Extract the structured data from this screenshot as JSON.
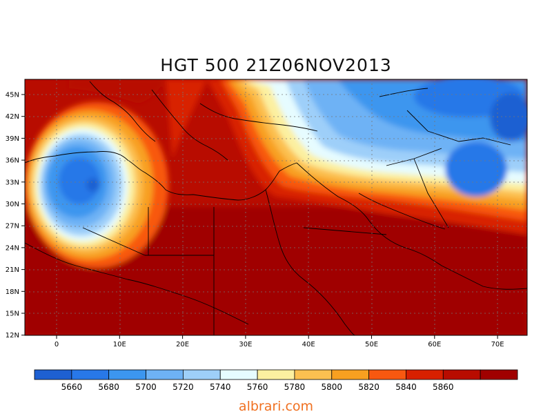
{
  "title": "HGT 500 21Z06NOV2013",
  "x_ticks": [
    "0",
    "10E",
    "20E",
    "30E",
    "40E",
    "50E",
    "60E",
    "70E"
  ],
  "y_ticks": [
    "45N",
    "42N",
    "39N",
    "36N",
    "33N",
    "30N",
    "27N",
    "24N",
    "21N",
    "18N",
    "15N",
    "12N"
  ],
  "colorbar": {
    "colors": [
      "#1e60d2",
      "#2878e8",
      "#3c96ef",
      "#6eb2f5",
      "#9ecff9",
      "#e6fcff",
      "#fcf0a0",
      "#fcc050",
      "#f8a020",
      "#f85810",
      "#d82000",
      "#b80c00",
      "#a00000"
    ],
    "labels": [
      "5660",
      "5680",
      "5700",
      "5720",
      "5740",
      "5760",
      "5780",
      "5800",
      "5820",
      "5840",
      "5860"
    ]
  },
  "credit": "albrari.com"
}
